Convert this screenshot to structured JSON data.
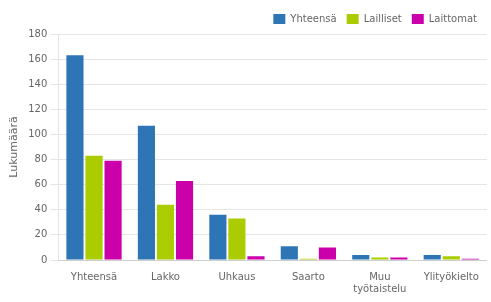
{
  "chart_data": {
    "type": "bar",
    "ylabel": "Lukumäärä",
    "categories": [
      "Yhteensä",
      "Lakko",
      "Uhkaus",
      "Saarto",
      "Muu\ntyötaistelu",
      "Ylityökielto"
    ],
    "series": [
      {
        "name": "Yhteensä",
        "color": "#2E75B6",
        "values": [
          163,
          107,
          36,
          11,
          4,
          4
        ]
      },
      {
        "name": "Lailliset",
        "color": "#AACC00",
        "values": [
          83,
          44,
          33,
          1,
          2,
          3
        ]
      },
      {
        "name": "Laittomat",
        "color": "#CC00AA",
        "values": [
          79,
          63,
          3,
          10,
          2,
          1
        ]
      }
    ],
    "ylim": [
      0,
      180
    ],
    "yticks": [
      0,
      20,
      40,
      60,
      80,
      100,
      120,
      140,
      160,
      180
    ],
    "grid": true,
    "legend": "upper right"
  }
}
